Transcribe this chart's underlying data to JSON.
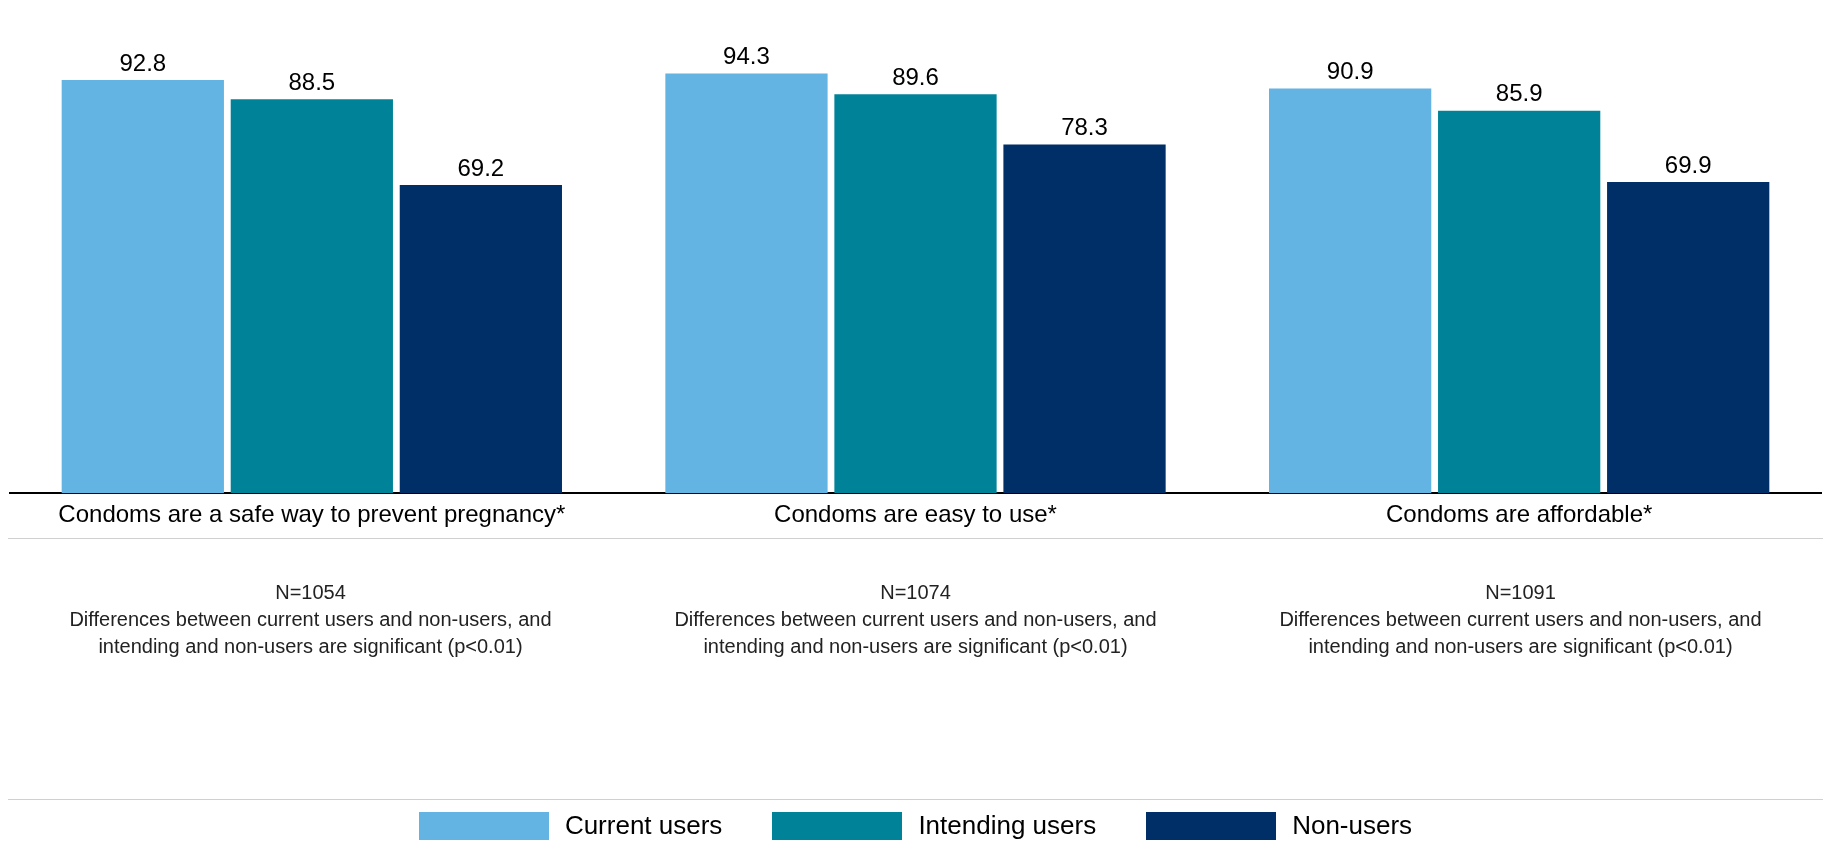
{
  "chart_data": {
    "type": "bar",
    "categories": [
      "Condoms are a safe way to prevent pregnancy*",
      "Condoms are easy to use*",
      "Condoms are affordable*"
    ],
    "series": [
      {
        "name": "Current users",
        "color": "#63b4e3",
        "values": [
          92.8,
          94.3,
          90.9
        ]
      },
      {
        "name": "Intending users",
        "color": "#008398",
        "values": [
          88.5,
          89.6,
          85.9
        ]
      },
      {
        "name": "Non-users",
        "color": "#002f67",
        "values": [
          69.2,
          78.3,
          69.9
        ]
      }
    ],
    "data_labels": true,
    "grid": false,
    "legend": "bottom",
    "annotations": [
      "N=1054\nDifferences between current users and non-users, and intending and non-users are significant (p<0.01)",
      "N=1074\nDifferences between current users and non-users, and intending and non-users are significant (p<0.01)",
      "N=1091\nDifferences between current users and non-users, and intending and non-users are significant (p<0.01)"
    ]
  }
}
